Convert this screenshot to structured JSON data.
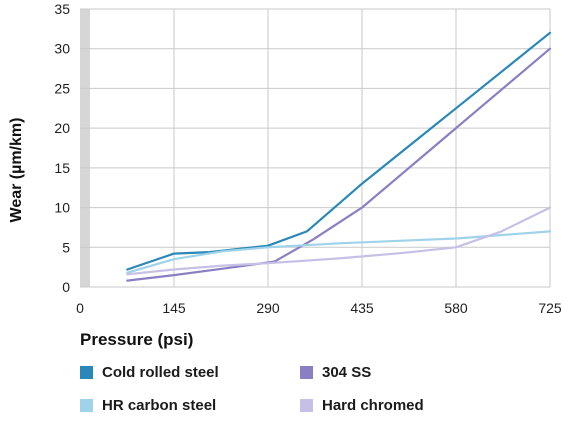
{
  "chart_data": {
    "type": "line",
    "xlabel": "Pressure (psi)",
    "ylabel": "Wear (µm/km)",
    "x_ticks": [
      0,
      145,
      290,
      435,
      580,
      725
    ],
    "y_ticks": [
      0,
      5,
      10,
      15,
      20,
      25,
      30,
      35
    ],
    "xlim": [
      0,
      725
    ],
    "ylim": [
      0,
      35
    ],
    "grid": true,
    "legend_position": "bottom",
    "series": [
      {
        "name": "Cold rolled steel",
        "color": "#2a88b8",
        "points": [
          [
            73,
            2.2
          ],
          [
            145,
            4.2
          ],
          [
            200,
            4.4
          ],
          [
            290,
            5.2
          ],
          [
            350,
            7.0
          ],
          [
            435,
            13.0
          ],
          [
            580,
            22.5
          ],
          [
            725,
            32.0
          ]
        ]
      },
      {
        "name": "304 SS",
        "color": "#8b7fc4",
        "points": [
          [
            73,
            0.8
          ],
          [
            145,
            1.5
          ],
          [
            220,
            2.3
          ],
          [
            300,
            3.2
          ],
          [
            360,
            6.0
          ],
          [
            435,
            10.0
          ],
          [
            580,
            20.0
          ],
          [
            725,
            30.0
          ]
        ]
      },
      {
        "name": "HR carbon steel",
        "color": "#9fd3ea",
        "points": [
          [
            73,
            1.8
          ],
          [
            145,
            3.5
          ],
          [
            220,
            4.5
          ],
          [
            290,
            5.0
          ],
          [
            400,
            5.5
          ],
          [
            580,
            6.1
          ],
          [
            725,
            7.0
          ]
        ]
      },
      {
        "name": "Hard chromed",
        "color": "#c7c0e6",
        "points": [
          [
            73,
            1.6
          ],
          [
            145,
            2.2
          ],
          [
            220,
            2.7
          ],
          [
            290,
            3.0
          ],
          [
            400,
            3.6
          ],
          [
            500,
            4.3
          ],
          [
            580,
            5.0
          ],
          [
            650,
            7.0
          ],
          [
            725,
            10.0
          ]
        ]
      }
    ]
  }
}
